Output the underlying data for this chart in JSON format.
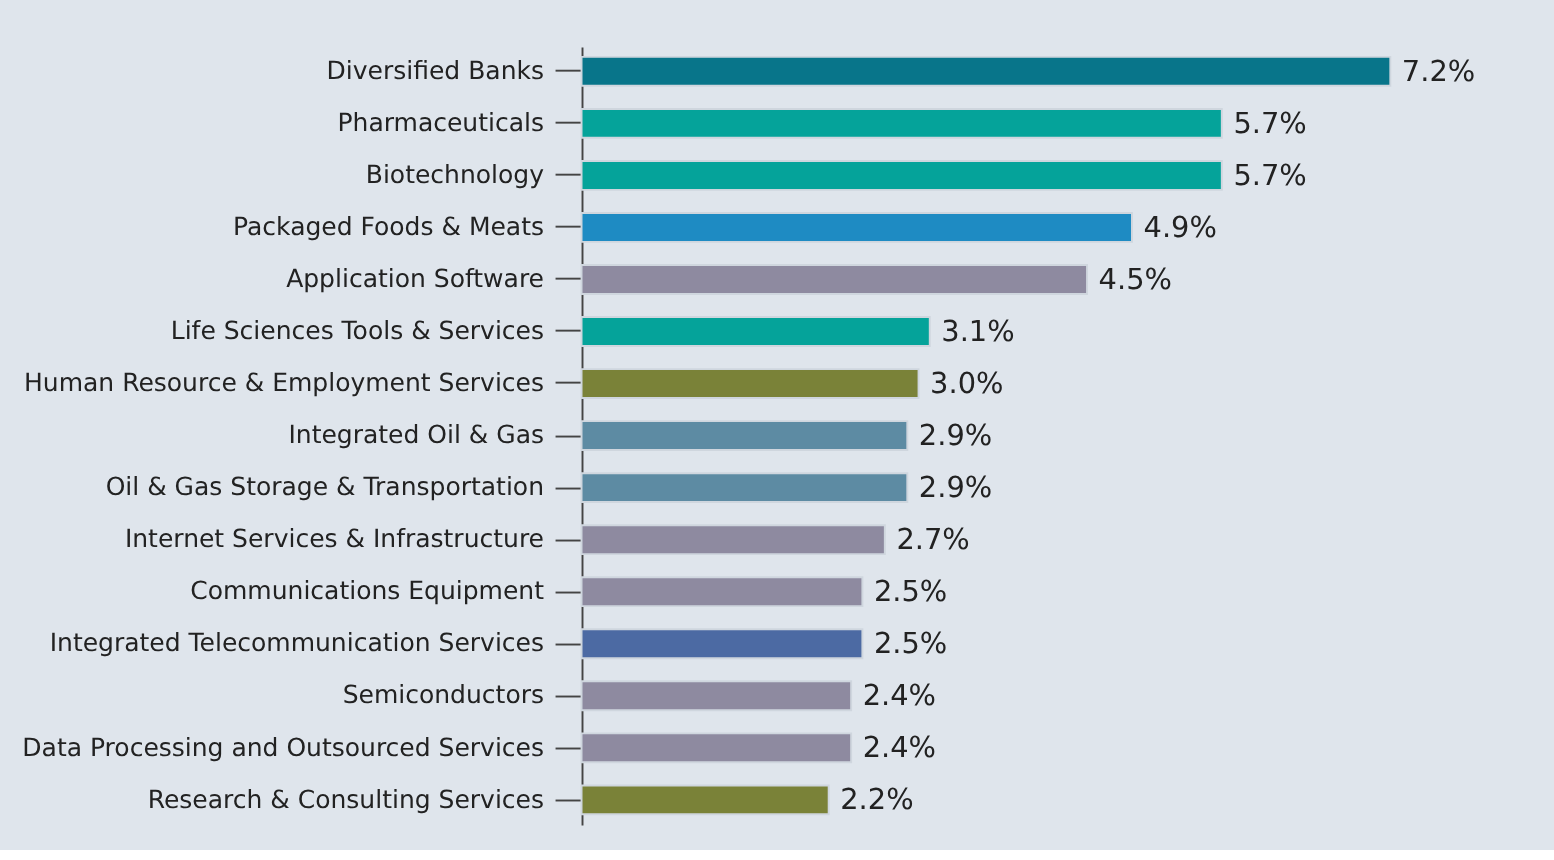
{
  "chart_data": {
    "type": "bar",
    "orientation": "horizontal",
    "categories": [
      "Diversified Banks",
      "Pharmaceuticals",
      "Biotechnology",
      "Packaged Foods & Meats",
      "Application Software",
      "Life Sciences Tools & Services",
      "Human Resource & Employment Services",
      "Integrated Oil & Gas",
      "Oil & Gas Storage & Transportation",
      "Internet Services & Infrastructure",
      "Communications Equipment",
      "Integrated Telecommunication Services",
      "Semiconductors",
      "Data Processing and Outsourced Services",
      "Research & Consulting Services"
    ],
    "values": [
      7.2,
      5.7,
      5.7,
      4.9,
      4.5,
      3.1,
      3.0,
      2.9,
      2.9,
      2.7,
      2.5,
      2.5,
      2.4,
      2.4,
      2.2
    ],
    "value_labels": [
      "7.2%",
      "5.7%",
      "5.7%",
      "4.9%",
      "4.5%",
      "3.1%",
      "3.0%",
      "2.9%",
      "2.9%",
      "2.7%",
      "2.5%",
      "2.5%",
      "2.4%",
      "2.4%",
      "2.2%"
    ],
    "colors": [
      "#08758a",
      "#05a39a",
      "#05a39a",
      "#1e8bc3",
      "#8e8aa0",
      "#05a39a",
      "#7a8238",
      "#5d8ba3",
      "#5d8ba3",
      "#8e8aa0",
      "#8e8aa0",
      "#4c6aa3",
      "#8e8aa0",
      "#8e8aa0",
      "#7a8238"
    ],
    "tick_labels": "y"
  }
}
